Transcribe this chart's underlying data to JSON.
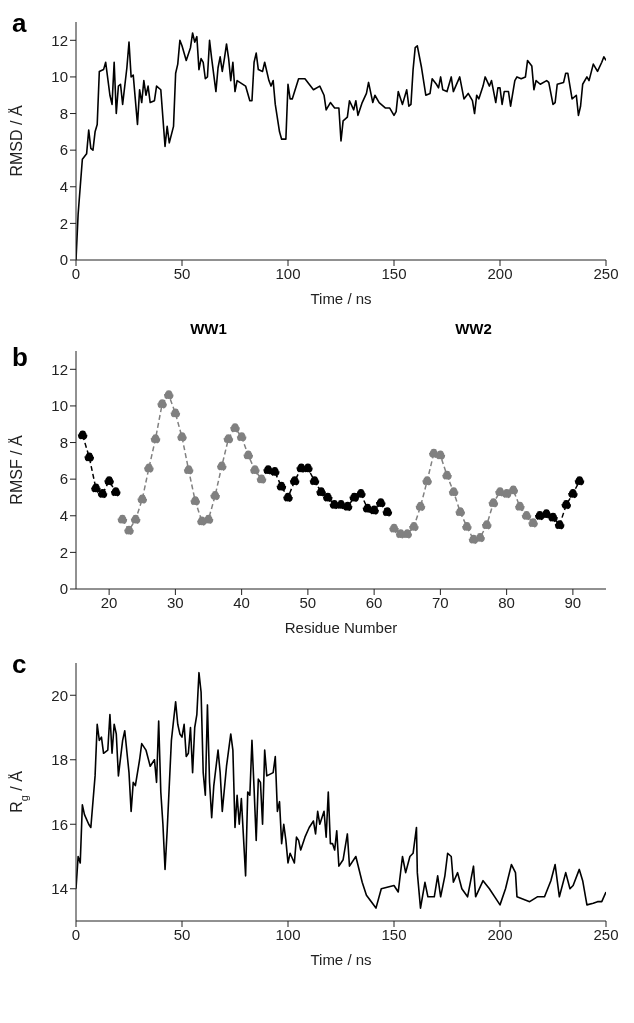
{
  "chart_data": [
    {
      "type": "line",
      "title": "a",
      "xlabel": "Time / ns",
      "ylabel": "RMSD / Å",
      "xlim": [
        0,
        250
      ],
      "xticks": [
        0,
        50,
        100,
        150,
        200,
        250
      ],
      "ylim": [
        0,
        13
      ],
      "yticks": [
        0,
        2,
        4,
        6,
        8,
        10,
        12
      ],
      "marker": "none",
      "x": [
        0,
        1,
        2,
        3,
        5,
        6,
        7,
        8,
        9,
        10,
        11,
        13,
        14,
        16,
        17,
        18,
        19,
        20,
        21,
        22,
        24,
        25,
        26,
        27,
        29,
        30,
        31,
        32,
        33,
        34,
        35,
        37,
        38,
        40,
        42,
        43,
        44,
        46,
        47,
        48,
        49,
        50,
        52,
        54,
        55,
        56,
        57,
        58,
        59,
        60,
        61,
        62,
        63,
        64,
        66,
        67,
        68,
        69,
        70,
        71,
        72,
        73,
        74,
        75,
        76,
        80,
        82,
        83,
        84,
        85,
        86,
        88,
        89,
        91,
        92,
        93,
        94,
        96,
        97,
        99,
        100,
        101,
        102,
        105,
        108,
        110,
        112,
        115,
        117,
        118,
        120,
        122,
        124,
        125,
        126,
        128,
        129,
        131,
        132,
        133,
        135,
        137,
        138,
        140,
        141,
        143,
        146,
        148,
        150,
        151,
        152,
        154,
        156,
        157,
        158,
        159,
        160,
        161,
        163,
        165,
        167,
        168,
        170,
        171,
        172,
        173,
        175,
        177,
        178,
        181,
        183,
        185,
        187,
        188,
        189,
        190,
        192,
        193,
        195,
        196,
        198,
        199,
        200,
        201,
        202,
        204,
        205,
        207,
        208,
        210,
        212,
        213,
        215,
        216,
        217,
        219,
        222,
        223,
        225,
        226,
        227,
        230,
        231,
        232,
        234,
        236,
        237,
        238,
        239,
        241,
        242,
        244,
        246,
        248,
        249,
        250
      ],
      "series": [
        {
          "color": "#000000",
          "values": [
            0,
            2.5,
            4,
            5.5,
            5.8,
            7.1,
            6.1,
            6.0,
            7.0,
            7.4,
            10.3,
            10.4,
            10.8,
            9.0,
            8.5,
            10.8,
            8.0,
            9.5,
            9.6,
            8.5,
            10.5,
            11.9,
            10.0,
            10.1,
            7.4,
            9.3,
            8.6,
            9.8,
            9.0,
            9.5,
            8.6,
            8.7,
            9.5,
            9.3,
            6.2,
            7.3,
            6.4,
            7.3,
            10.2,
            10.7,
            12.0,
            11.7,
            10.9,
            11.6,
            12.4,
            11.9,
            12.2,
            10.4,
            11.0,
            10.8,
            9.9,
            10.0,
            12.0,
            11.0,
            9.2,
            10.5,
            11.1,
            10.3,
            11.0,
            11.8,
            11.0,
            9.8,
            10.8,
            9.2,
            9.8,
            9.5,
            8.7,
            8.7,
            10.8,
            11.3,
            10.4,
            10.3,
            10.8,
            9.8,
            9.5,
            9.8,
            8.5,
            7.0,
            6.6,
            6.6,
            9.6,
            8.8,
            8.8,
            9.9,
            9.9,
            9.6,
            9.3,
            9.5,
            9.0,
            8.2,
            8.6,
            8.3,
            8.3,
            6.5,
            7.6,
            7.8,
            8.7,
            8.2,
            8.7,
            7.9,
            8.6,
            9.1,
            9.7,
            8.6,
            9.0,
            8.6,
            8.3,
            8.3,
            7.9,
            8.1,
            9.2,
            8.5,
            9.3,
            8.4,
            8.5,
            10.4,
            11.6,
            11.7,
            10.5,
            9.0,
            9.1,
            9.9,
            9.6,
            9.4,
            10.0,
            9.3,
            9.2,
            10.0,
            9.2,
            10.0,
            8.8,
            9.1,
            8.7,
            8.0,
            9.0,
            8.8,
            9.5,
            10.0,
            9.5,
            9.8,
            8.6,
            9.4,
            9.4,
            8.5,
            9.2,
            9.2,
            8.4,
            9.8,
            10.0,
            9.9,
            10.0,
            10.9,
            10.6,
            9.3,
            9.8,
            9.6,
            9.8,
            9.7,
            8.5,
            8.6,
            9.6,
            9.7,
            10.2,
            10.2,
            8.8,
            9.0,
            7.9,
            8.4,
            9.6,
            10.0,
            9.8,
            10.7,
            10.3,
            10.8,
            11.1,
            10.9
          ]
        }
      ]
    },
    {
      "type": "line",
      "title": "b",
      "xlabel": "Residue Number",
      "ylabel": "RMSF / Å",
      "annotations": [
        "WW1",
        "WW2"
      ],
      "xlim": [
        15,
        95
      ],
      "xticks": [
        20,
        30,
        40,
        50,
        60,
        70,
        80,
        90
      ],
      "ylim": [
        0,
        13
      ],
      "yticks": [
        0,
        2,
        4,
        6,
        8,
        10,
        12
      ],
      "marker": "circle",
      "line_style": "dashed",
      "x": [
        16,
        17,
        18,
        19,
        20,
        21,
        22,
        23,
        24,
        25,
        26,
        27,
        28,
        29,
        30,
        31,
        32,
        33,
        34,
        35,
        36,
        37,
        38,
        39,
        40,
        41,
        42,
        43,
        44,
        45,
        46,
        47,
        48,
        49,
        50,
        51,
        52,
        53,
        54,
        55,
        56,
        57,
        58,
        59,
        60,
        61,
        62,
        63,
        64,
        65,
        66,
        67,
        68,
        69,
        70,
        71,
        72,
        73,
        74,
        75,
        76,
        77,
        78,
        79,
        80,
        81,
        82,
        83,
        84,
        85,
        86,
        87,
        88,
        89,
        90,
        91
      ],
      "series": [
        {
          "color": "#000000",
          "values": [
            8.4,
            7.2,
            5.5,
            5.2,
            5.9,
            5.3,
            null,
            null,
            null,
            null,
            null,
            null,
            null,
            null,
            null,
            null,
            null,
            null,
            null,
            null,
            null,
            null,
            null,
            null,
            null,
            null,
            null,
            null,
            6.5,
            6.4,
            5.6,
            5.0,
            5.9,
            6.6,
            6.6,
            5.9,
            5.3,
            5.0,
            4.6,
            4.6,
            4.5,
            5.0,
            5.2,
            4.4,
            4.3,
            4.7,
            4.2,
            null,
            null,
            null,
            null,
            null,
            null,
            null,
            null,
            null,
            null,
            null,
            null,
            null,
            null,
            null,
            null,
            null,
            null,
            null,
            null,
            null,
            null,
            4.0,
            4.1,
            3.9,
            3.5,
            4.6,
            5.2,
            5.9
          ]
        },
        {
          "color": "#808080",
          "values": [
            null,
            null,
            null,
            null,
            null,
            null,
            3.8,
            3.2,
            3.8,
            4.9,
            6.6,
            8.2,
            10.1,
            10.6,
            9.6,
            8.3,
            6.5,
            4.8,
            3.7,
            3.8,
            5.1,
            6.7,
            8.2,
            8.8,
            8.3,
            7.3,
            6.5,
            6.0,
            null,
            null,
            null,
            null,
            null,
            null,
            null,
            null,
            null,
            null,
            null,
            null,
            null,
            null,
            null,
            null,
            null,
            null,
            null,
            3.3,
            3.0,
            3.0,
            3.4,
            4.5,
            5.9,
            7.4,
            7.3,
            6.2,
            5.3,
            4.2,
            3.4,
            2.7,
            2.8,
            3.5,
            4.7,
            5.3,
            5.2,
            5.4,
            4.5,
            4.0,
            3.6,
            null,
            null,
            null,
            null,
            null,
            null,
            null
          ]
        }
      ]
    },
    {
      "type": "line",
      "title": "c",
      "xlabel": "Time / ns",
      "ylabel": "R$_{g}$ / Å",
      "xlim": [
        0,
        250
      ],
      "xticks": [
        0,
        50,
        100,
        150,
        200,
        250
      ],
      "ylim": [
        13,
        21
      ],
      "yticks": [
        14,
        16,
        18,
        20
      ],
      "marker": "none",
      "x": [
        0,
        1,
        2,
        3,
        4,
        6,
        7,
        9,
        10,
        11,
        12,
        13,
        15,
        16,
        17,
        18,
        19,
        20,
        22,
        23,
        25,
        26,
        27,
        28,
        30,
        31,
        33,
        35,
        37,
        38,
        39,
        40,
        41,
        42,
        43,
        45,
        47,
        48,
        49,
        50,
        51,
        52,
        53,
        54,
        55,
        56,
        57,
        58,
        59,
        60,
        61,
        62,
        63,
        64,
        65,
        67,
        68,
        69,
        71,
        73,
        74,
        75,
        76,
        77,
        78,
        80,
        81,
        82,
        83,
        84,
        85,
        86,
        87,
        88,
        89,
        90,
        93,
        94,
        95,
        96,
        97,
        98,
        99,
        100,
        101,
        103,
        104,
        105,
        106,
        108,
        110,
        112,
        113,
        114,
        115,
        117,
        118,
        119,
        120,
        121,
        122,
        123,
        124,
        126,
        128,
        129,
        132,
        135,
        137,
        141.5,
        144,
        150,
        152,
        154,
        155.5,
        157.5,
        159,
        160.6,
        161,
        162.5,
        164.6,
        166,
        169,
        170.6,
        172,
        174,
        175.3,
        177,
        178,
        180,
        182,
        184.7,
        187.5,
        188.5,
        192,
        195,
        199,
        200,
        202.6,
        205.4,
        207.3,
        208,
        214,
        217.6,
        221,
        224,
        226,
        228,
        231,
        233,
        234.5,
        237.4,
        239,
        241,
        244,
        246,
        248,
        250
      ],
      "series": [
        {
          "color": "#000000",
          "values": [
            14.0,
            15.0,
            14.8,
            16.6,
            16.3,
            16.0,
            15.9,
            17.5,
            19.1,
            18.6,
            18.7,
            18.2,
            18.3,
            19.4,
            18.2,
            19.1,
            18.8,
            17.5,
            18.6,
            18.9,
            17.6,
            16.4,
            17.3,
            17.2,
            18.0,
            18.5,
            18.3,
            17.8,
            18.0,
            17.3,
            19.2,
            17.0,
            16.0,
            14.6,
            15.8,
            18.6,
            19.8,
            19.1,
            18.8,
            18.7,
            19.1,
            18.1,
            18.2,
            19.0,
            17.6,
            19.0,
            19.4,
            20.7,
            20.1,
            17.6,
            16.9,
            19.7,
            17.3,
            16.2,
            17.2,
            18.3,
            17.6,
            16.4,
            17.8,
            18.8,
            18.3,
            15.9,
            16.9,
            16.0,
            16.8,
            14.4,
            17.0,
            16.9,
            18.6,
            17.1,
            15.5,
            17.4,
            17.3,
            16.0,
            18.3,
            17.5,
            17.6,
            18.1,
            16.4,
            16.7,
            15.4,
            16.0,
            15.5,
            14.8,
            15.1,
            14.8,
            15.6,
            15.5,
            15.2,
            15.6,
            15.9,
            16.1,
            15.7,
            16.4,
            16.0,
            16.4,
            15.6,
            17.0,
            15.4,
            15.4,
            15.2,
            15.8,
            14.7,
            14.9,
            15.7,
            14.7,
            15.0,
            14.2,
            13.8,
            13.4,
            14.0,
            14.1,
            13.9,
            15.0,
            14.5,
            15.0,
            15.1,
            15.9,
            14.5,
            13.4,
            14.2,
            13.75,
            13.75,
            14.4,
            13.75,
            14.4,
            15.1,
            15.0,
            14.2,
            14.5,
            14.0,
            13.75,
            14.7,
            13.75,
            14.25,
            14.0,
            13.6,
            13.5,
            14.0,
            14.75,
            14.5,
            13.75,
            13.6,
            13.75,
            13.75,
            14.25,
            14.75,
            13.75,
            14.5,
            14.0,
            14.1,
            14.6,
            14.25,
            13.5,
            13.55,
            13.6,
            13.6,
            13.9
          ]
        }
      ]
    }
  ]
}
